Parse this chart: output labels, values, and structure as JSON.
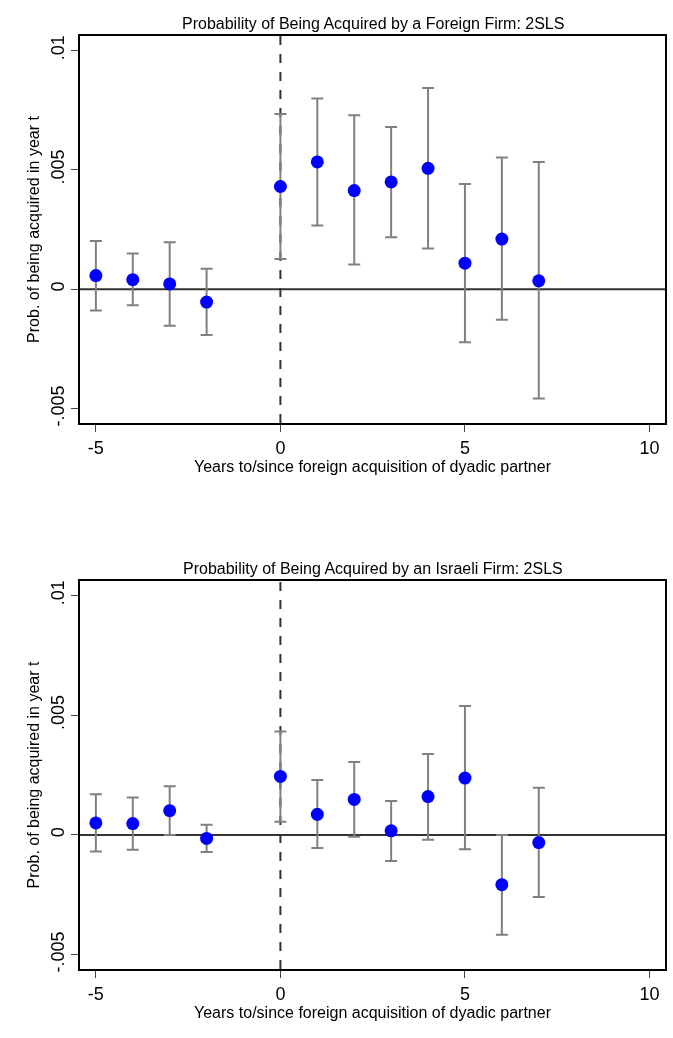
{
  "chart_data": [
    {
      "type": "scatter",
      "title": "Probability of Being Acquired by a Foreign Firm: 2SLS",
      "xlabel": "Years to/since foreign acquisition of dyadic partner",
      "ylabel": "Prob. of being acquired in year t",
      "x": [
        -5,
        -4,
        -3,
        -2,
        0,
        1,
        2,
        3,
        4,
        5,
        6,
        7
      ],
      "series": [
        {
          "color": "#0000ff",
          "values": [
            0.00057,
            0.0004,
            0.00022,
            -0.00054,
            0.0043,
            0.00533,
            0.00413,
            0.00449,
            0.00506,
            0.00109,
            0.0021,
            0.00035
          ],
          "errors": [
            [
              -0.00089,
              0.00202
            ],
            [
              -0.00067,
              0.0015
            ],
            [
              -0.00153,
              0.00197
            ],
            [
              -0.00192,
              0.00086
            ],
            [
              0.00126,
              0.00734
            ],
            [
              0.00267,
              0.00798
            ],
            [
              0.00103,
              0.00728
            ],
            [
              0.00218,
              0.00679
            ],
            [
              0.0017,
              0.00842
            ],
            [
              -0.00222,
              0.0044
            ],
            [
              -0.00128,
              0.00551
            ],
            [
              -0.00457,
              0.00533
            ]
          ]
        }
      ],
      "marker": "circle",
      "xlim": [
        -5.43,
        10.42
      ],
      "xticks": [
        -5,
        0,
        5,
        10
      ],
      "ylim": [
        -0.0056,
        0.0106
      ],
      "yticks": [
        {
          "value": -0.005,
          "label": "-.005"
        },
        {
          "value": 0,
          "label": "0"
        },
        {
          "value": 0.005,
          "label": ".005"
        },
        {
          "value": 0.01,
          "label": ".01"
        }
      ],
      "ref_lines": [
        {
          "axis": "y",
          "value": 0,
          "color": "#333333",
          "line_style": "solid"
        },
        {
          "axis": "x",
          "value": 0,
          "color": "#333333",
          "line_style": "dashed"
        }
      ],
      "grid": false
    },
    {
      "type": "scatter",
      "title": "Probability of Being Acquired by an Israeli Firm: 2SLS",
      "xlabel": "Years to/since foreign acquisition of dyadic partner",
      "ylabel": "Prob. of being acquired in year t",
      "x": [
        -5,
        -4,
        -3,
        -2,
        0,
        1,
        2,
        3,
        4,
        5,
        6,
        7
      ],
      "series": [
        {
          "color": "#0000ff",
          "values": [
            0.0005,
            0.00047,
            0.00101,
            -0.00015,
            0.00244,
            0.00086,
            0.00148,
            0.00017,
            0.0016,
            0.00237,
            -0.00208,
            -0.00032
          ],
          "errors": [
            [
              -0.00069,
              0.0017
            ],
            [
              -0.00062,
              0.00156
            ],
            [
              0.0,
              0.00203
            ],
            [
              -0.00071,
              0.00042
            ],
            [
              0.00055,
              0.00432
            ],
            [
              -0.00055,
              0.00229
            ],
            [
              -8e-05,
              0.00304
            ],
            [
              -0.00109,
              0.00141
            ],
            [
              -0.0002,
              0.00338
            ],
            [
              -0.0006,
              0.00538
            ],
            [
              -0.00417,
              0.0
            ],
            [
              -0.00259,
              0.00197
            ]
          ]
        }
      ],
      "marker": "circle",
      "xlim": [
        -5.43,
        10.42
      ],
      "xticks": [
        -5,
        0,
        5,
        10
      ],
      "ylim": [
        -0.0056,
        0.0106
      ],
      "yticks": [
        {
          "value": -0.005,
          "label": "-.005"
        },
        {
          "value": 0,
          "label": "0"
        },
        {
          "value": 0.005,
          "label": ".005"
        },
        {
          "value": 0.01,
          "label": ".01"
        }
      ],
      "ref_lines": [
        {
          "axis": "y",
          "value": 0,
          "color": "#333333",
          "line_style": "solid"
        },
        {
          "axis": "x",
          "value": 0,
          "color": "#333333",
          "line_style": "dashed"
        }
      ],
      "grid": false
    }
  ]
}
